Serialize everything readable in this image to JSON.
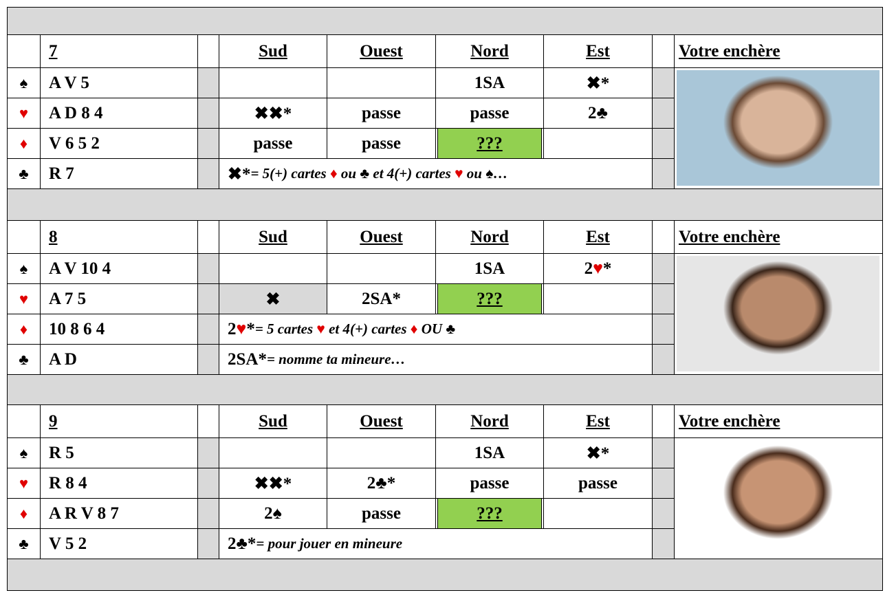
{
  "suits": [
    "♠",
    "♥",
    "♦",
    "♣"
  ],
  "suit_colors": [
    "#000000",
    "#e00000",
    "#e00000",
    "#000000"
  ],
  "columns": [
    "Sud",
    "Ouest",
    "Nord",
    "Est"
  ],
  "answer_header": "Votre enchère",
  "deals": [
    {
      "number": "7",
      "hand": [
        "A V 5",
        "A D 8 4",
        "V 6 5 2",
        "R 7"
      ],
      "auction": [
        [
          null,
          null,
          [
            "1SA"
          ],
          [
            "✖*"
          ]
        ],
        [
          [
            "✖✖*"
          ],
          [
            "passe"
          ],
          [
            "passe"
          ],
          [
            "2♣"
          ]
        ],
        [
          [
            "passe"
          ],
          [
            "passe"
          ],
          {
            "parts": [
              "???"
            ],
            "fill": "#92d050"
          },
          null
        ]
      ],
      "notes": [
        {
          "term": [
            "✖*"
          ],
          "text": [
            " = 5(+) cartes ",
            "♦",
            " ou ♣ et 4(+) cartes ",
            "♥",
            " ou ♠…"
          ]
        }
      ]
    },
    {
      "number": "8",
      "hand": [
        "A V 10 4",
        "A 7 5",
        "10 8 6 4",
        "A D"
      ],
      "auction": [
        [
          null,
          null,
          [
            "1SA"
          ],
          [
            "2",
            "♥",
            "*"
          ]
        ],
        [
          {
            "parts": [
              "✖"
            ],
            "fill": "#d9d9d9"
          },
          [
            "2SA*"
          ],
          {
            "parts": [
              "???"
            ],
            "fill": "#92d050"
          },
          null
        ]
      ],
      "notes": [
        {
          "term": [
            "2",
            "♥",
            "*"
          ],
          "text": [
            "= 5 cartes ",
            "♥",
            " et 4(+) cartes ",
            "♦",
            " OU ♣"
          ]
        },
        {
          "term": [
            "2SA*"
          ],
          "text": [
            " = nomme ta mineure…"
          ]
        }
      ]
    },
    {
      "number": "9",
      "hand": [
        "R 5",
        "R 8 4",
        "A R V 8 7",
        "V 5 2"
      ],
      "auction": [
        [
          null,
          null,
          [
            "1SA"
          ],
          [
            "✖*"
          ]
        ],
        [
          [
            "✖✖*"
          ],
          [
            "2♣*"
          ],
          [
            "passe"
          ],
          [
            "passe"
          ]
        ],
        [
          [
            "2♠"
          ],
          [
            "passe"
          ],
          {
            "parts": [
              "???"
            ],
            "fill": "#92d050"
          },
          null
        ]
      ],
      "notes": [
        {
          "term": [
            "2♣*"
          ],
          "text": [
            " = pour jouer en mineure"
          ]
        }
      ]
    }
  ]
}
